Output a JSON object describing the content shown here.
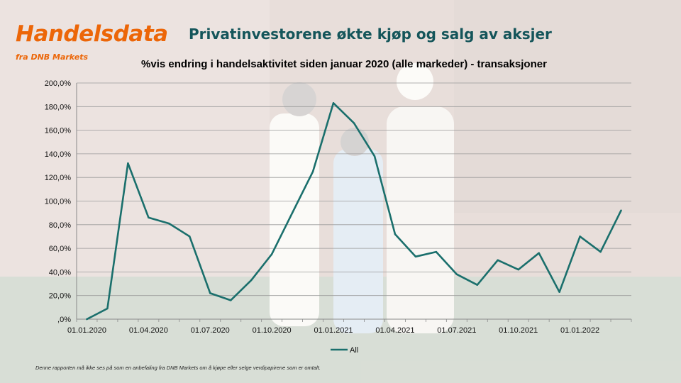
{
  "brand": {
    "name": "Handelsdata",
    "subtitle": "fra DNB Markets"
  },
  "headline": "Privatinvestorene økte kjøp og salg av aksjer",
  "footnote": "Denne rapporten må ikke ses på som en anbefaling fra DNB Markets om å kjøpe eller selge verdipapirene som er omtalt.",
  "colors": {
    "brand_orange": "#ec6608",
    "headline_teal": "#14555a",
    "series_line": "#1a6f6c"
  },
  "chart_data": {
    "type": "line",
    "title": "%vis endring i handelsaktivitet siden januar 2020 (alle markeder) - transaksjoner",
    "xlabel": "",
    "ylabel": "",
    "ylim": [
      0,
      200
    ],
    "yticks": [
      0,
      20,
      40,
      60,
      80,
      100,
      120,
      140,
      160,
      180,
      200
    ],
    "ytick_labels": [
      ",0%",
      "20,0%",
      "40,0%",
      "60,0%",
      "80,0%",
      "100,0%",
      "120,0%",
      "140,0%",
      "160,0%",
      "180,0%",
      "200,0%"
    ],
    "x": [
      "2020-01",
      "2020-02",
      "2020-03",
      "2020-04",
      "2020-05",
      "2020-06",
      "2020-07",
      "2020-08",
      "2020-09",
      "2020-10",
      "2020-11",
      "2020-12",
      "2021-01",
      "2021-02",
      "2021-03",
      "2021-04",
      "2021-05",
      "2021-06",
      "2021-07",
      "2021-08",
      "2021-09",
      "2021-10",
      "2021-11",
      "2021-12",
      "2022-01",
      "2022-02",
      "2022-03"
    ],
    "xtick_positions": [
      0,
      3,
      6,
      9,
      12,
      15,
      18,
      21,
      24
    ],
    "xtick_labels": [
      "01.01.2020",
      "01.04.2020",
      "01.07.2020",
      "01.10.2020",
      "01.01.2021",
      "01.04.2021",
      "01.07.2021",
      "01.10.2021",
      "01.01.2022"
    ],
    "series": [
      {
        "name": "All",
        "values": [
          0,
          9,
          132,
          86,
          81,
          70,
          22,
          16,
          33,
          55,
          90,
          125,
          183,
          166,
          138,
          72,
          53,
          57,
          38,
          29,
          50,
          42,
          56,
          23,
          70,
          57,
          92
        ]
      }
    ],
    "grid": "horizontal",
    "legend": "bottom-center"
  }
}
